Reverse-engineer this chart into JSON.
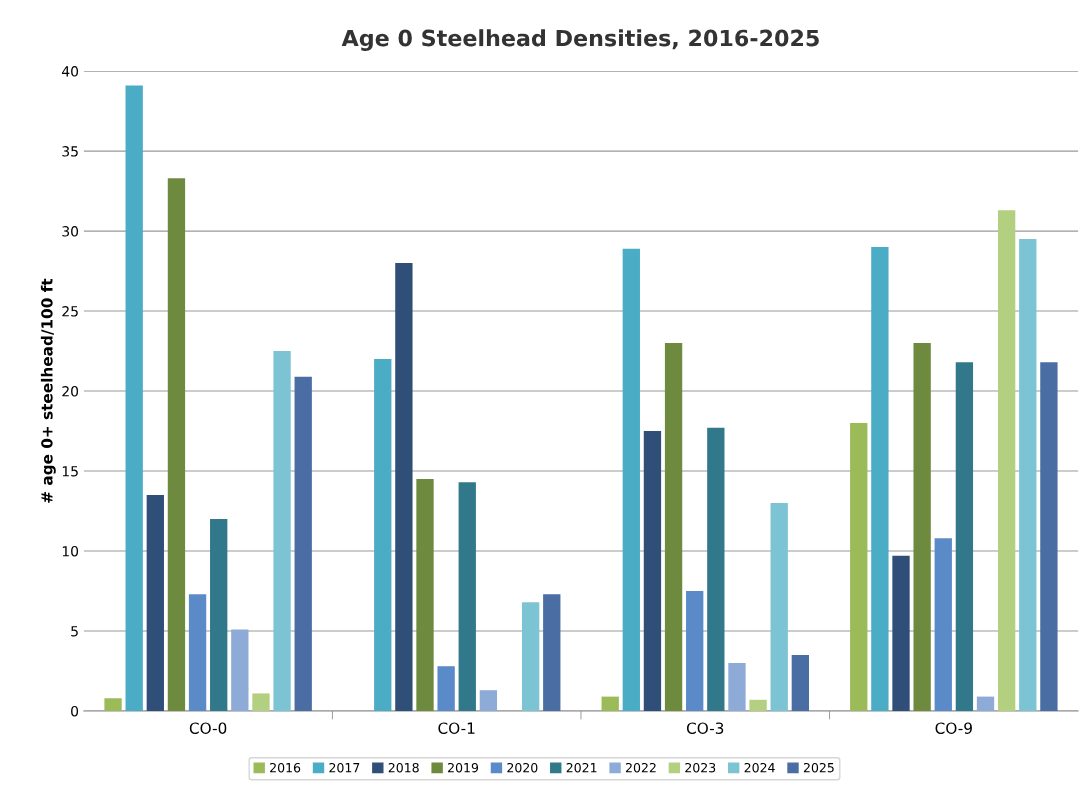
{
  "chart_data": {
    "type": "bar",
    "title": "Age 0 Steelhead Densities, 2016-2025",
    "ylabel": "# age 0+ steelhead/100 ft",
    "categories": [
      "CO-0",
      "CO-1",
      "CO-3",
      "CO-9"
    ],
    "series": [
      {
        "name": "2016",
        "color": "#9bbb59",
        "values": [
          0.8,
          null,
          0.9,
          18.0
        ]
      },
      {
        "name": "2017",
        "color": "#4bacc6",
        "values": [
          39.1,
          22.0,
          28.9,
          29.0
        ]
      },
      {
        "name": "2018",
        "color": "#2f4f78",
        "values": [
          13.5,
          28.0,
          17.5,
          9.7
        ]
      },
      {
        "name": "2019",
        "color": "#6e8a3e",
        "values": [
          33.3,
          14.5,
          23.0,
          23.0
        ]
      },
      {
        "name": "2020",
        "color": "#5b8ac8",
        "values": [
          7.3,
          2.8,
          7.5,
          10.8
        ]
      },
      {
        "name": "2021",
        "color": "#31788a",
        "values": [
          12.0,
          14.3,
          17.7,
          21.8
        ]
      },
      {
        "name": "2022",
        "color": "#8eaad6",
        "values": [
          5.1,
          1.3,
          3.0,
          0.9
        ]
      },
      {
        "name": "2023",
        "color": "#b3cf80",
        "values": [
          1.1,
          null,
          0.7,
          31.3
        ]
      },
      {
        "name": "2024",
        "color": "#7cc4d4",
        "values": [
          22.5,
          6.8,
          13.0,
          29.5
        ]
      },
      {
        "name": "2025",
        "color": "#4a6ea3",
        "values": [
          20.9,
          7.3,
          3.5,
          21.8
        ]
      }
    ],
    "ylim": [
      0,
      40
    ],
    "yticks": [
      0,
      5,
      10,
      15,
      20,
      25,
      30,
      35,
      40
    ],
    "grid": "y",
    "legend": "bottom"
  }
}
